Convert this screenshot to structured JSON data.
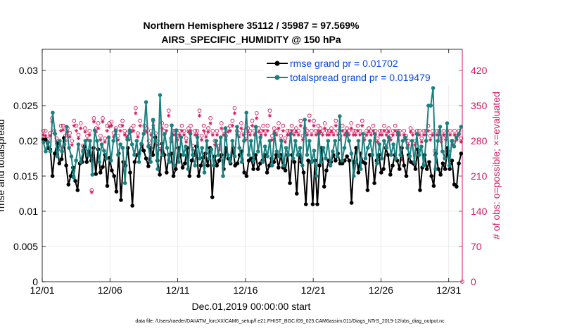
{
  "chart_data": {
    "type": "line",
    "title_line1": "Northern Hemisphere 35112 / 35987 = 97.569%",
    "title_line2": "AIRS_SPECIFIC_HUMIDITY @ 150 hPa",
    "xlabel": "Dec.01,2019 00:00:00 start",
    "ylabel": "rmse and totalspread",
    "ylabel_right": "# of obs: o=possible; ×=evaluated",
    "footnote": "data file: /Users/raeder/DAI/ATM_forcXX/CAM6_setup/f.e21.FHIST_BGC.f09_025.CAM6assim.011/Diags_NTrS_2019-12/obs_diag_output.nc",
    "x_tick_labels": [
      "12/01",
      "12/06",
      "12/11",
      "12/16",
      "12/21",
      "12/26",
      "12/31"
    ],
    "x_tick_days": [
      1,
      6,
      11,
      16,
      21,
      26,
      31
    ],
    "xlim_days": [
      1,
      32
    ],
    "ylim_left": [
      0,
      0.033
    ],
    "y_ticks_left": [
      0,
      0.005,
      0.01,
      0.015,
      0.02,
      0.025,
      0.03
    ],
    "y_tick_labels_left": [
      "0",
      "0.005",
      "0.01",
      "0.015",
      "0.02",
      "0.025",
      "0.03"
    ],
    "ylim_right": [
      0,
      462
    ],
    "y_ticks_right": [
      0,
      70,
      140,
      210,
      280,
      350,
      420
    ],
    "y_tick_labels_right": [
      "0",
      "70",
      "140",
      "210",
      "280",
      "350",
      "420"
    ],
    "legend_position": "top-right",
    "series": [
      {
        "name": "rmse",
        "legend": "rmse grand pr = 0.01702",
        "color": "#000000",
        "marker": "asterisk-dot",
        "values": [
          0.0202,
          0.0202,
          0.019,
          0.0188,
          0.015,
          0.0182,
          0.0196,
          0.0168,
          0.0174,
          0.0204,
          0.0165,
          0.0138,
          0.015,
          0.0162,
          0.0143,
          0.013,
          0.0168,
          0.017,
          0.0192,
          0.017,
          0.0185,
          0.0172,
          0.019,
          0.0153,
          0.0188,
          0.0155,
          0.0163,
          0.018,
          0.0136,
          0.0176,
          0.0158,
          0.015,
          0.0128,
          0.0182,
          0.0116,
          0.017,
          0.0165,
          0.019,
          0.0155,
          0.0108,
          0.017,
          0.018,
          0.0182,
          0.0195,
          0.0186,
          0.0175,
          0.0164,
          0.019,
          0.018,
          0.0205,
          0.0172,
          0.0152,
          0.0196,
          0.018,
          0.0155,
          0.018,
          0.0182,
          0.015,
          0.016,
          0.019,
          0.018,
          0.0162,
          0.0168,
          0.019,
          0.015,
          0.0172,
          0.018,
          0.0192,
          0.015,
          0.0165,
          0.0176,
          0.0182,
          0.0165,
          0.019,
          0.012,
          0.0178,
          0.0165,
          0.0172,
          0.018,
          0.016,
          0.019,
          0.0175,
          0.0168,
          0.019,
          0.0165,
          0.0168,
          0.018,
          0.0185,
          0.0155,
          0.015,
          0.0172,
          0.0175,
          0.016,
          0.018,
          0.016,
          0.0168,
          0.0172,
          0.018,
          0.0155,
          0.0165,
          0.0175,
          0.017,
          0.018,
          0.0162,
          0.018,
          0.0162,
          0.0158,
          0.018,
          0.014,
          0.018,
          0.017,
          0.0125,
          0.018,
          0.017,
          0.0155,
          0.011,
          0.0172,
          0.017,
          0.011,
          0.0172,
          0.011,
          0.0165,
          0.019,
          0.0135,
          0.0158,
          0.0172,
          0.017,
          0.018,
          0.0172,
          0.0182,
          0.0168,
          0.0168,
          0.0172,
          0.0178,
          0.0172,
          0.0112,
          0.017,
          0.019,
          0.0155,
          0.0182,
          0.017,
          0.0168,
          0.013,
          0.018,
          0.018,
          0.014,
          0.0172,
          0.018,
          0.0155,
          0.016,
          0.019,
          0.018,
          0.0152,
          0.0165,
          0.018,
          0.0172,
          0.016,
          0.019,
          0.0165,
          0.015,
          0.018,
          0.017,
          0.0168,
          0.016,
          0.0188,
          0.013,
          0.0162,
          0.018,
          0.016,
          0.017,
          0.015,
          0.0136,
          0.0182,
          0.016,
          0.0152,
          0.0168,
          0.016,
          0.019,
          0.016,
          0.0172,
          0.0138,
          0.0135,
          0.0168,
          0.0182
        ]
      },
      {
        "name": "totalspread",
        "legend": "totalspread grand pr = 0.019479",
        "color": "#1b8080",
        "marker": "dot",
        "values": [
          0.0198,
          0.0185,
          0.0198,
          0.0185,
          0.024,
          0.021,
          0.0178,
          0.02,
          0.0185,
          0.0195,
          0.022,
          0.019,
          0.0178,
          0.0148,
          0.0172,
          0.0195,
          0.017,
          0.0185,
          0.02,
          0.018,
          0.02,
          0.0152,
          0.0215,
          0.02,
          0.017,
          0.0195,
          0.0186,
          0.0175,
          0.0205,
          0.0172,
          0.02,
          0.0215,
          0.018,
          0.0195,
          0.019,
          0.014,
          0.0202,
          0.0215,
          0.0195,
          0.018,
          0.02,
          0.017,
          0.0196,
          0.021,
          0.0255,
          0.0192,
          0.017,
          0.023,
          0.02,
          0.016,
          0.0265,
          0.018,
          0.021,
          0.019,
          0.017,
          0.0222,
          0.0165,
          0.0215,
          0.017,
          0.0205,
          0.018,
          0.0192,
          0.016,
          0.021,
          0.018,
          0.0165,
          0.0205,
          0.0175,
          0.019,
          0.0155,
          0.02,
          0.0175,
          0.0188,
          0.0165,
          0.02,
          0.018,
          0.0205,
          0.015,
          0.0218,
          0.018,
          0.017,
          0.02,
          0.0178,
          0.022,
          0.019,
          0.017,
          0.02,
          0.024,
          0.018,
          0.02,
          0.0172,
          0.022,
          0.0185,
          0.0205,
          0.017,
          0.0192,
          0.0178,
          0.02,
          0.0165,
          0.021,
          0.0185,
          0.0178,
          0.02,
          0.0165,
          0.019,
          0.018,
          0.021,
          0.0175,
          0.02,
          0.018,
          0.019,
          0.0165,
          0.023,
          0.018,
          0.02,
          0.017,
          0.0186,
          0.015,
          0.021,
          0.017,
          0.019,
          0.0175,
          0.02,
          0.0165,
          0.0185,
          0.02,
          0.0178,
          0.0235,
          0.0172,
          0.019,
          0.021,
          0.02,
          0.0182,
          0.015,
          0.017,
          0.02,
          0.016,
          0.021,
          0.0175,
          0.019,
          0.02,
          0.018,
          0.021,
          0.0168,
          0.0195,
          0.0175,
          0.02,
          0.019,
          0.0205,
          0.018,
          0.0195,
          0.0175,
          0.0212,
          0.018,
          0.02,
          0.0205,
          0.019,
          0.0178,
          0.02,
          0.017,
          0.021,
          0.018,
          0.0192,
          0.0165,
          0.02,
          0.025,
          0.025,
          0.0275,
          0.016,
          0.02,
          0.022,
          0.0185,
          0.0175,
          0.0225,
          0.0165,
          0.02,
          0.0192,
          0.0205,
          0.021,
          0.022
        ]
      },
      {
        "name": "possible",
        "color": "#d6175c",
        "marker": "circle",
        "values": [
          300,
          300,
          283,
          295,
          325,
          300,
          285,
          270,
          310,
          310,
          290,
          305,
          296,
          280,
          320,
          310,
          292,
          315,
          270,
          305,
          290,
          300,
          182,
          325,
          305,
          315,
          290,
          325,
          285,
          310,
          315,
          318,
          296,
          305,
          290,
          310,
          320,
          300,
          295,
          290,
          305,
          310,
          345,
          295,
          320,
          270,
          310,
          305,
          280,
          300,
          320,
          295,
          280,
          270,
          315,
          300,
          310,
          340,
          285,
          300,
          300,
          290,
          300,
          310,
          300,
          285,
          305,
          310,
          270,
          300,
          300,
          340,
          290,
          310,
          295,
          305,
          325,
          300,
          280,
          300,
          270,
          315,
          300,
          290,
          305,
          310,
          320,
          345,
          300,
          295,
          315,
          300,
          290,
          305,
          300,
          320,
          300,
          335,
          305,
          300,
          310,
          300,
          310,
          340,
          290,
          305,
          300,
          315,
          290,
          310,
          285,
          300,
          300,
          310,
          300,
          305,
          300,
          320,
          290,
          305,
          300,
          330,
          300,
          320,
          300,
          310,
          305,
          300,
          315,
          300,
          300,
          305,
          300,
          320,
          300,
          290,
          310,
          300,
          305,
          300,
          315,
          300,
          300,
          310,
          300,
          320,
          290,
          300,
          305,
          300,
          310,
          300,
          285,
          300,
          300,
          310,
          300,
          305,
          290,
          300,
          310,
          300,
          300,
          250,
          300,
          290,
          280,
          305,
          300,
          280,
          300,
          300,
          285,
          300,
          300,
          310,
          290,
          300,
          260,
          300,
          300,
          285,
          300,
          290,
          260,
          300,
          280,
          300,
          290,
          300,
          285
        ]
      },
      {
        "name": "evaluated",
        "color": "#d6175c",
        "marker": "asterisk",
        "values": [
          292,
          290,
          278,
          290,
          318,
          295,
          278,
          262,
          300,
          302,
          280,
          298,
          288,
          272,
          310,
          300,
          285,
          305,
          262,
          298,
          282,
          292,
          178,
          318,
          298,
          305,
          282,
          318,
          278,
          300,
          308,
          310,
          288,
          298,
          282,
          300,
          310,
          292,
          288,
          282,
          298,
          300,
          335,
          288,
          310,
          262,
          300,
          298,
          272,
          292,
          310,
          288,
          272,
          262,
          305,
          292,
          300,
          330,
          278,
          292,
          292,
          282,
          292,
          300,
          292,
          278,
          298,
          300,
          262,
          292,
          292,
          330,
          282,
          300,
          288,
          298,
          315,
          292,
          272,
          292,
          262,
          305,
          292,
          282,
          298,
          300,
          310,
          335,
          292,
          288,
          305,
          292,
          282,
          298,
          292,
          310,
          292,
          325,
          298,
          292,
          300,
          292,
          300,
          330,
          282,
          298,
          292,
          305,
          282,
          300,
          278,
          292,
          292,
          300,
          292,
          298,
          292,
          310,
          282,
          298,
          292,
          320,
          292,
          310,
          292,
          300,
          298,
          292,
          305,
          292,
          292,
          298,
          292,
          310,
          292,
          282,
          300,
          292,
          298,
          292,
          305,
          292,
          292,
          300,
          292,
          310,
          282,
          292,
          298,
          292,
          300,
          292,
          278,
          292,
          292,
          300,
          292,
          298,
          282,
          292,
          300,
          292,
          292,
          242,
          292,
          282,
          272,
          298,
          292,
          272,
          292,
          292,
          278,
          292,
          292,
          300,
          282,
          292,
          252,
          292,
          292,
          278,
          292,
          282,
          252,
          292,
          272,
          292,
          282,
          292,
          278
        ]
      }
    ]
  }
}
